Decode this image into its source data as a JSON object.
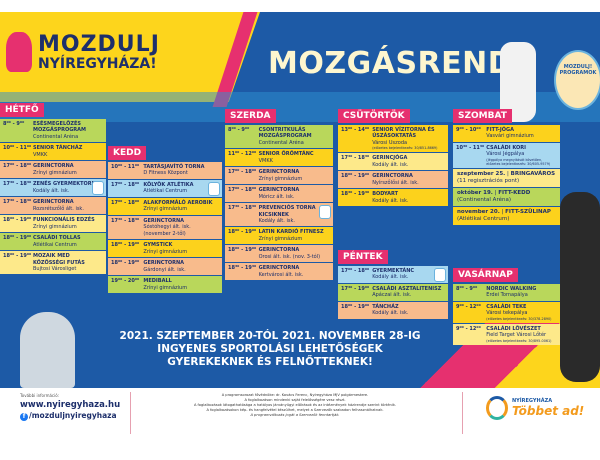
{
  "header": {
    "logo_line1": "MOZDULJ",
    "logo_line2": "NYÍREGYHÁZA!",
    "title": "MOZGÁSREND",
    "badge_text": "MOZDULJ! PROGRAMOK"
  },
  "colors": {
    "background": "#1d5aa6",
    "accent": "#e6306f",
    "yellow": "#fdd51c"
  },
  "days": [
    {
      "label": "HÉTFŐ",
      "rows": [
        {
          "time": "8⁰⁰ - 9⁰⁰",
          "name": "Esésmegelőzés mozgásprogram",
          "place": "Continental Aréna",
          "color": "#b9d75b"
        },
        {
          "time": "10⁰⁰ - 11⁰⁰",
          "name": "Senior táncház",
          "place": "VMKK",
          "color": "#fcd21c"
        },
        {
          "time": "17⁰⁰ - 18⁰⁰",
          "name": "Gerinctorna",
          "place": "Zrínyi gimnázium",
          "color": "#f8bb8c"
        },
        {
          "time": "17³⁰ - 18³⁰",
          "name": "Zenés gyermektorna",
          "place": "Kodály ált. isk.",
          "color": "#a8d8f0",
          "kids": true
        },
        {
          "time": "17³⁰ - 18³⁰",
          "name": "Gerinctorna",
          "place": "Rozsrétszőlő ált. isk.",
          "color": "#f8bb8c"
        },
        {
          "time": "18⁰⁰ - 19⁰⁰",
          "name": "Funkcionális edzés",
          "place": "Zrínyi gimnázium",
          "color": "#fde98a"
        },
        {
          "time": "18⁰⁰ - 19⁰⁰",
          "name": "Családi tollas",
          "place": "Atlétikai Centrum",
          "color": "#b9d75b"
        },
        {
          "time": "18⁰⁰ - 19⁰⁰",
          "name": "Mozaik Med közösségi futás",
          "place": "Bujtosi Városliget",
          "color": "#fde98a"
        }
      ]
    },
    {
      "label": "KEDD",
      "rows": [
        {
          "time": "10⁰⁰ - 11⁰⁰",
          "name": "Tartásjavító torna",
          "place": "D Fitness Központ",
          "color": "#f8bb8c"
        },
        {
          "time": "17⁰⁰ - 18⁰⁰",
          "name": "Kölyök atlétika",
          "place": "Atlétikai Centrum",
          "color": "#a8d8f0",
          "kids": true
        },
        {
          "time": "17⁰⁰ - 18⁰⁰",
          "name": "Alakformáló aerobik",
          "place": "Zrínyi gimnázium",
          "color": "#fcd21c"
        },
        {
          "time": "17³⁰ - 18³⁰",
          "name": "Gerinctorna",
          "place": "Sóstóhegyi ált. isk. (november 2-től)",
          "color": "#f8bb8c"
        },
        {
          "time": "18⁰⁰ - 19⁰⁰",
          "name": "Gymstick",
          "place": "Zrínyi gimnázium",
          "color": "#fcd21c"
        },
        {
          "time": "18⁰⁰ - 19⁰⁰",
          "name": "Gerinctorna",
          "place": "Gárdonyi ált. isk.",
          "color": "#f8bb8c"
        },
        {
          "time": "19⁰⁰ - 20⁰⁰",
          "name": "Mediball",
          "place": "Zrínyi gimnázium",
          "color": "#b9d75b"
        }
      ]
    },
    {
      "label": "SZERDA",
      "rows": [
        {
          "time": "8⁰⁰ - 9⁰⁰",
          "name": "Csontritkulás mozgásprogram",
          "place": "Continental Aréna",
          "color": "#b9d75b"
        },
        {
          "time": "11⁰⁰ - 12⁰⁰",
          "name": "Senior örömtánc",
          "place": "VMKK",
          "color": "#fcd21c"
        },
        {
          "time": "17⁰⁰ - 18⁰⁰",
          "name": "Gerinctorna",
          "place": "Zrínyi gimnázium",
          "color": "#f8bb8c"
        },
        {
          "time": "17⁰⁰ - 18⁰⁰",
          "name": "Gerinctorna",
          "place": "Móricz ált. isk.",
          "color": "#f8bb8c"
        },
        {
          "time": "17³⁰ - 18³⁰",
          "name": "Prevenciós torna kicsiknek",
          "place": "Kodály ált. isk.",
          "color": "#f8bb8c",
          "kids": true
        },
        {
          "time": "18⁰⁰ - 19⁰⁰",
          "name": "Latin kardió fitnesz",
          "place": "Zrínyi gimnázium",
          "color": "#fcd21c"
        },
        {
          "time": "18⁰⁰ - 19⁰⁰",
          "name": "Gerinctorna",
          "place": "Orosi ált. isk. (nov. 3-tól)",
          "color": "#f8bb8c"
        },
        {
          "time": "18³⁰ - 19³⁰",
          "name": "Gerinctorna",
          "place": "Kertvárosi ált. isk.",
          "color": "#f8bb8c"
        }
      ]
    },
    {
      "label": "CSÜTÖRTÖK",
      "rows": [
        {
          "time": "13⁰⁰ - 14⁰⁰",
          "name": "Senior vízitorna és úszásoktatás",
          "place": "Városi Uszoda",
          "note": "(előzetes bejelentkezés: 30/851-8669)",
          "color": "#fcd21c"
        },
        {
          "time": "17³⁰ - 18³⁰",
          "name": "Gerincjóga",
          "place": "Kodály ált. isk.",
          "color": "#fde98a"
        },
        {
          "time": "18⁰⁰ - 19⁰⁰",
          "name": "Gerinctorna",
          "place": "Nyírszőlősi ált. isk.",
          "color": "#f8bb8c"
        },
        {
          "time": "18³⁰ - 19³⁰",
          "name": "BodyART",
          "place": "Kodály ált. isk.",
          "color": "#fcd21c"
        }
      ]
    },
    {
      "label": "PÉNTEK",
      "rows": [
        {
          "time": "17⁰⁰ - 18⁰⁰",
          "name": "Gyermektánc",
          "place": "Kodály ált. isk.",
          "color": "#a8d8f0",
          "kids": true
        },
        {
          "time": "17³⁰ - 19⁰⁰",
          "name": "Családi asztalitenisz",
          "place": "Apáczai ált. isk.",
          "color": "#b9d75b"
        },
        {
          "time": "18⁰⁰ - 19⁰⁰",
          "name": "Táncház",
          "place": "Kodály ált. isk.",
          "color": "#f8bb8c"
        }
      ]
    },
    {
      "label": "SZOMBAT",
      "rows": [
        {
          "time": "9⁰⁰ - 10⁰⁰",
          "name": "Fitt-jóga",
          "place": "Vasvári gimnázium",
          "color": "#fcd21c"
        },
        {
          "time": "10³⁰ - 11³⁰",
          "name": "Családi kori",
          "place": "Városi Jégpálya",
          "note": "(Jégpálya megnyitását követően, előzetes bejelentkezés: 30/605-9579)",
          "color": "#a8d8f0"
        }
      ],
      "specials": [
        {
          "date": "szeptember 25.",
          "event": "BRINGAVÁROS",
          "place": "(11 regisztrációs pont)",
          "color": "#fde98a"
        },
        {
          "date": "október 19.",
          "event": "FITT-KEDD",
          "place": "(Continental Aréna)",
          "color": "#b9d75b"
        },
        {
          "date": "november 20.",
          "event": "FITT-SZÜLINAP",
          "place": "(Atlétikai Centrum)",
          "color": "#fcd21c"
        }
      ]
    },
    {
      "label": "VASÁRNAP",
      "rows": [
        {
          "time": "8⁰⁰ - 9⁰⁰",
          "name": "Nordic walking",
          "place": "Erdei Tornapálya",
          "color": "#b9d75b"
        },
        {
          "time": "9⁰⁰ - 12⁰⁰",
          "name": "Családi teke",
          "place": "Városi tekepálya",
          "note": "(előzetes bejelentkezés: 30/378-2890)",
          "color": "#fcd21c"
        },
        {
          "time": "9⁰⁰ - 12⁰⁰",
          "name": "Családi lövészet",
          "place": "Field Target Városi Lőtér",
          "note": "(előzetes bejelentkezés: 30/895-0061)",
          "color": "#fde98a"
        }
      ]
    }
  ],
  "banner": {
    "line1": "2021. SZEPTEMBER 20-TÓL 2021. NOVEMBER 28-IG",
    "line2": "INGYENES SPORTOLÁSI LEHETŐSÉGEK",
    "line3": "GYEREKEKNEK ÉS FELNŐTTEKNEK!"
  },
  "footer": {
    "info_label": "További információ:",
    "website": "www.nyiregyhaza.hu",
    "facebook": "/mozduljnyiregyhaza",
    "notes": [
      "A programsorozat fővédnöke: dr. Kovács Ferenc, Nyíregyháza MJV polgármestere.",
      "A foglalkozáson mindenki saját felelősségére vesz részt.",
      "A foglalkozások látogathatósága a hatályos járványügyi előírások és az intézmények házirendje szerint történik.",
      "A foglalkozásokon kép- és hangfelvétel készülhet, melyet a Szervezők szabadon felhasználhatnak.",
      "A programváltozás jogát a Szervezők fenntartják."
    ],
    "logo_top": "NYÍREGYHÁZA",
    "logo_bottom": "Többet ad!"
  }
}
